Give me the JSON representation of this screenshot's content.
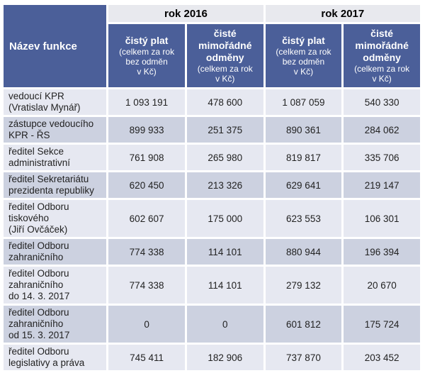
{
  "colors": {
    "header_blue": "#4B5F99",
    "year_band_bg": "#E8E9EE",
    "row_light": "#E6E8F1",
    "row_dark": "#CCD1E0",
    "header_text": "#FFFFFF",
    "body_text": "#222222"
  },
  "table": {
    "corner_header": "Název funkce",
    "year_groups": [
      {
        "label": "rok 2016"
      },
      {
        "label": "rok 2017"
      }
    ],
    "col_headers": [
      {
        "title": "čistý plat",
        "subtitle": "(celkem za rok\nbez odměn\nv Kč)"
      },
      {
        "title": "čisté\nmimořádné\nodměny",
        "subtitle": "(celkem za rok\nv Kč)"
      },
      {
        "title": "čistý plat",
        "subtitle": "(celkem za rok\nbez odměn\nv Kč)"
      },
      {
        "title": "čisté\nmimořádné\nodměny",
        "subtitle": "(celkem za rok\nv Kč)"
      }
    ],
    "rows": [
      {
        "label": "vedoucí KPR\n(Vratislav Mynář)",
        "values": [
          "1 093 191",
          "478 600",
          "1 087 059",
          "540 330"
        ]
      },
      {
        "label": "zástupce vedoucího\nKPR - ŘS",
        "values": [
          "899 933",
          "251 375",
          "890 361",
          "284 062"
        ]
      },
      {
        "label": "ředitel Sekce\nadministrativní",
        "values": [
          "761 908",
          "265 980",
          "819 817",
          "335 706"
        ]
      },
      {
        "label": "ředitel Sekretariátu\nprezidenta republiky",
        "values": [
          "620 450",
          "213 326",
          "629 641",
          "219 147"
        ]
      },
      {
        "label": "ředitel Odboru\ntiskového\n(Jiří Ovčáček)",
        "values": [
          "602 607",
          "175 000",
          "623 553",
          "106 301"
        ]
      },
      {
        "label": "ředitel Odboru\nzahraničního",
        "values": [
          "774 338",
          "114 101",
          "880 944",
          "196 394"
        ]
      },
      {
        "label": "ředitel Odboru\nzahraničního\ndo 14. 3. 2017",
        "values": [
          "774 338",
          "114 101",
          "279 132",
          "20 670"
        ]
      },
      {
        "label": "ředitel Odboru\nzahraničního\nod 15. 3. 2017",
        "values": [
          "0",
          "0",
          "601 812",
          "175 724"
        ]
      },
      {
        "label": "ředitel Odboru\nlegislativy a práva",
        "values": [
          "745 411",
          "182 906",
          "737 870",
          "203 452"
        ]
      }
    ]
  }
}
